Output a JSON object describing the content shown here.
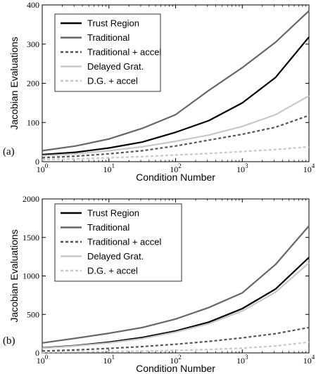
{
  "chart_data": [
    {
      "type": "line",
      "panel_label": "(a)",
      "xlabel": "Condition Number",
      "ylabel": "Jacobian Evaluations",
      "xscale": "log",
      "xlim": [
        1,
        10000
      ],
      "ylim": [
        0,
        400
      ],
      "xticks": [
        {
          "value": 1,
          "base": "10",
          "exp": "0"
        },
        {
          "value": 10,
          "base": "10",
          "exp": "1"
        },
        {
          "value": 100,
          "base": "10",
          "exp": "2"
        },
        {
          "value": 1000,
          "base": "10",
          "exp": "3"
        },
        {
          "value": 10000,
          "base": "10",
          "exp": "4"
        }
      ],
      "yticks": [
        0,
        100,
        200,
        300,
        400
      ],
      "legend_position": "top-left",
      "grid": false,
      "series": [
        {
          "name": "Trust Region",
          "color": "#000000",
          "dash": "solid",
          "x": [
            1,
            3.16,
            10,
            31.6,
            100,
            316,
            1000,
            3160,
            10000
          ],
          "y": [
            18,
            24,
            35,
            50,
            75,
            105,
            150,
            215,
            318
          ]
        },
        {
          "name": "Traditional",
          "color": "#666666",
          "dash": "solid",
          "x": [
            1,
            3.16,
            10,
            31.6,
            100,
            316,
            1000,
            3160,
            10000
          ],
          "y": [
            28,
            40,
            58,
            85,
            120,
            182,
            240,
            305,
            385
          ]
        },
        {
          "name": "Traditional + accel",
          "color": "#555555",
          "dash": "dashed",
          "x": [
            1,
            3.16,
            10,
            31.6,
            100,
            316,
            1000,
            3160,
            10000
          ],
          "y": [
            10,
            14,
            20,
            28,
            40,
            55,
            70,
            88,
            118
          ]
        },
        {
          "name": "Delayed Grat.",
          "color": "#c8c8c8",
          "dash": "solid",
          "x": [
            1,
            3.16,
            10,
            31.6,
            100,
            316,
            1000,
            3160,
            10000
          ],
          "y": [
            15,
            20,
            28,
            38,
            52,
            68,
            90,
            120,
            168
          ]
        },
        {
          "name": "D.G. + accel",
          "color": "#c8c8c8",
          "dash": "dashed",
          "x": [
            1,
            3.16,
            10,
            31.6,
            100,
            316,
            1000,
            3160,
            10000
          ],
          "y": [
            5,
            7,
            10,
            13,
            17,
            21,
            26,
            31,
            38
          ]
        }
      ]
    },
    {
      "type": "line",
      "panel_label": "(b)",
      "xlabel": "Condition Number",
      "ylabel": "Jacobian Evaluations",
      "xscale": "log",
      "xlim": [
        1,
        10000
      ],
      "ylim": [
        0,
        2000
      ],
      "xticks": [
        {
          "value": 1,
          "base": "10",
          "exp": "0"
        },
        {
          "value": 10,
          "base": "10",
          "exp": "1"
        },
        {
          "value": 100,
          "base": "10",
          "exp": "2"
        },
        {
          "value": 1000,
          "base": "10",
          "exp": "3"
        },
        {
          "value": 10000,
          "base": "10",
          "exp": "4"
        }
      ],
      "yticks": [
        0,
        500,
        1000,
        1500,
        2000
      ],
      "legend_position": "top-left",
      "grid": false,
      "series": [
        {
          "name": "Trust Region",
          "color": "#000000",
          "dash": "solid",
          "x": [
            1,
            3.16,
            10,
            31.6,
            100,
            316,
            1000,
            3160,
            10000
          ],
          "y": [
            65,
            95,
            140,
            200,
            285,
            400,
            575,
            830,
            1240
          ]
        },
        {
          "name": "Traditional",
          "color": "#666666",
          "dash": "solid",
          "x": [
            1,
            3.16,
            10,
            31.6,
            100,
            316,
            1000,
            3160,
            10000
          ],
          "y": [
            130,
            190,
            255,
            330,
            440,
            590,
            780,
            1150,
            1650
          ]
        },
        {
          "name": "Traditional + accel",
          "color": "#555555",
          "dash": "dashed",
          "x": [
            1,
            3.16,
            10,
            31.6,
            100,
            316,
            1000,
            3160,
            10000
          ],
          "y": [
            25,
            38,
            58,
            82,
            112,
            150,
            195,
            250,
            330
          ]
        },
        {
          "name": "Delayed Grat.",
          "color": "#c8c8c8",
          "dash": "solid",
          "x": [
            1,
            3.16,
            10,
            31.6,
            100,
            316,
            1000,
            3160,
            10000
          ],
          "y": [
            60,
            90,
            130,
            185,
            270,
            380,
            545,
            790,
            1170
          ]
        },
        {
          "name": "D.G. + accel",
          "color": "#c8c8c8",
          "dash": "dashed",
          "x": [
            1,
            3.16,
            10,
            31.6,
            100,
            316,
            1000,
            3160,
            10000
          ],
          "y": [
            8,
            12,
            17,
            24,
            32,
            45,
            62,
            90,
            140
          ]
        }
      ]
    }
  ]
}
